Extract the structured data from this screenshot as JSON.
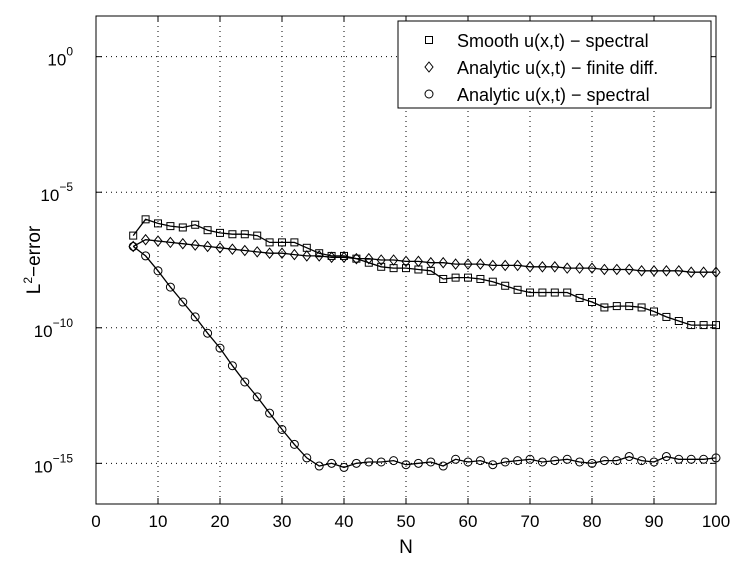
{
  "chart_data": {
    "type": "line",
    "title": "",
    "xlabel": "N",
    "ylabel_base": "L",
    "ylabel_sup": "2",
    "ylabel_rest": "−error",
    "xlim": [
      0,
      100
    ],
    "ylog_lim": [
      -16.5,
      1.5
    ],
    "xticks": [
      0,
      10,
      20,
      30,
      40,
      50,
      60,
      70,
      80,
      90,
      100
    ],
    "yticks": [
      {
        "exp": 0,
        "base": "10",
        "sup": "0"
      },
      {
        "exp": -5,
        "base": "10",
        "sup": "−5"
      },
      {
        "exp": -10,
        "base": "10",
        "sup": "−10"
      },
      {
        "exp": -15,
        "base": "10",
        "sup": "−15"
      }
    ],
    "grid": true,
    "legend_position": "top-right",
    "x": [
      6,
      8,
      10,
      12,
      14,
      16,
      18,
      20,
      22,
      24,
      26,
      28,
      30,
      32,
      34,
      36,
      38,
      40,
      42,
      44,
      46,
      48,
      50,
      52,
      54,
      56,
      58,
      60,
      62,
      64,
      66,
      68,
      70,
      72,
      74,
      76,
      78,
      80,
      82,
      84,
      86,
      88,
      90,
      92,
      94,
      96,
      98,
      100
    ],
    "series": [
      {
        "name": "Smooth u(x,t) − spectral",
        "marker": "square",
        "log10_values": [
          -6.6,
          -6.0,
          -6.15,
          -6.25,
          -6.3,
          -6.2,
          -6.4,
          -6.5,
          -6.55,
          -6.55,
          -6.6,
          -6.85,
          -6.85,
          -6.85,
          -7.05,
          -7.25,
          -7.35,
          -7.35,
          -7.45,
          -7.6,
          -7.75,
          -7.8,
          -7.8,
          -7.85,
          -7.9,
          -8.2,
          -8.15,
          -8.15,
          -8.2,
          -8.3,
          -8.45,
          -8.6,
          -8.7,
          -8.7,
          -8.7,
          -8.7,
          -8.9,
          -9.05,
          -9.25,
          -9.2,
          -9.2,
          -9.25,
          -9.4,
          -9.6,
          -9.75,
          -9.9,
          -9.9,
          -9.9
        ]
      },
      {
        "name": "Analytic u(x,t) − finite diff.",
        "marker": "diamond",
        "log10_values": [
          -7.0,
          -6.75,
          -6.8,
          -6.85,
          -6.9,
          -6.95,
          -7.0,
          -7.05,
          -7.1,
          -7.15,
          -7.2,
          -7.25,
          -7.25,
          -7.3,
          -7.35,
          -7.35,
          -7.4,
          -7.4,
          -7.45,
          -7.45,
          -7.5,
          -7.5,
          -7.55,
          -7.55,
          -7.6,
          -7.6,
          -7.65,
          -7.65,
          -7.65,
          -7.7,
          -7.7,
          -7.7,
          -7.75,
          -7.75,
          -7.75,
          -7.8,
          -7.8,
          -7.8,
          -7.85,
          -7.85,
          -7.85,
          -7.9,
          -7.9,
          -7.9,
          -7.9,
          -7.95,
          -7.95,
          -7.95
        ]
      },
      {
        "name": "Analytic u(x,t) − spectral",
        "marker": "circle",
        "log10_values": [
          -7.0,
          -7.35,
          -7.9,
          -8.5,
          -9.05,
          -9.6,
          -10.2,
          -10.75,
          -11.4,
          -12.0,
          -12.55,
          -13.15,
          -13.75,
          -14.3,
          -14.8,
          -15.1,
          -15.0,
          -15.15,
          -15.0,
          -14.95,
          -14.95,
          -14.9,
          -15.05,
          -15.0,
          -14.95,
          -15.1,
          -14.85,
          -14.95,
          -14.9,
          -15.05,
          -14.95,
          -14.9,
          -14.85,
          -14.95,
          -14.9,
          -14.85,
          -14.95,
          -15.0,
          -14.9,
          -14.9,
          -14.75,
          -14.9,
          -14.95,
          -14.75,
          -14.85,
          -14.85,
          -14.85,
          -14.8
        ]
      }
    ]
  }
}
